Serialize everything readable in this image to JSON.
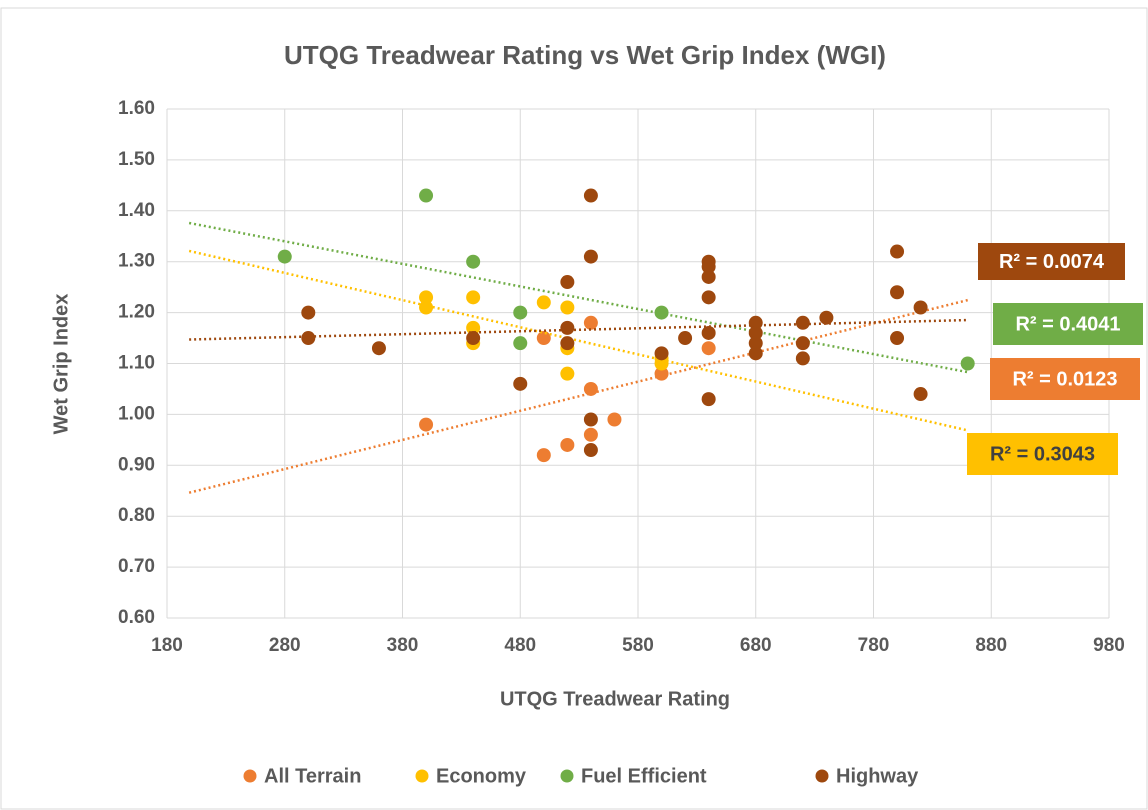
{
  "chart_data": {
    "type": "scatter",
    "title": "UTQG Treadwear Rating vs Wet Grip Index (WGI)",
    "x_label": "UTQG Treadwear Rating",
    "y_label": "Wet Grip Index",
    "xlim": [
      180,
      980
    ],
    "xticks": [
      180,
      280,
      380,
      480,
      580,
      680,
      780,
      880,
      980
    ],
    "ylim": [
      0.6,
      1.6
    ],
    "yticks": [
      {
        "value": 0.6,
        "label": "0.60"
      },
      {
        "value": 0.7,
        "label": "0.70"
      },
      {
        "value": 0.8,
        "label": "0.80"
      },
      {
        "value": 0.9,
        "label": "0.90"
      },
      {
        "value": 1.0,
        "label": "1.00"
      },
      {
        "value": 1.1,
        "label": "1.10"
      },
      {
        "value": 1.2,
        "label": "1.20"
      },
      {
        "value": 1.3,
        "label": "1.30"
      },
      {
        "value": 1.4,
        "label": "1.40"
      },
      {
        "value": 1.5,
        "label": "1.50"
      },
      {
        "value": 1.6,
        "label": "1.60"
      }
    ],
    "grid": true,
    "legend": "bottom",
    "series": [
      {
        "name": "All Terrain",
        "color": "#ed7d31",
        "trendline_label": "R² = 0.0123",
        "x": [
          400,
          500,
          500,
          520,
          540,
          540,
          540,
          560,
          600,
          640
        ],
        "values": [
          0.98,
          1.15,
          0.92,
          0.94,
          1.18,
          1.05,
          0.96,
          0.99,
          1.08,
          1.13
        ]
      },
      {
        "name": "Economy",
        "color": "#ffc000",
        "trendline_label": "R² = 0.3043",
        "x": [
          400,
          400,
          440,
          440,
          440,
          500,
          520,
          520,
          520,
          600,
          600
        ],
        "values": [
          1.23,
          1.21,
          1.23,
          1.17,
          1.14,
          1.22,
          1.21,
          1.13,
          1.08,
          1.11,
          1.1
        ]
      },
      {
        "name": "Fuel Efficient",
        "color": "#70ad47",
        "trendline_label": "R² = 0.4041",
        "x": [
          280,
          400,
          440,
          480,
          480,
          600,
          860
        ],
        "values": [
          1.31,
          1.43,
          1.3,
          1.2,
          1.14,
          1.2,
          1.1
        ]
      },
      {
        "name": "Highway",
        "color": "#9e480e",
        "trendline_label": "R² = 0.0074",
        "x": [
          300,
          300,
          360,
          440,
          480,
          520,
          520,
          520,
          540,
          540,
          540,
          540,
          600,
          620,
          640,
          640,
          640,
          640,
          640,
          640,
          680,
          680,
          680,
          680,
          720,
          720,
          720,
          740,
          800,
          800,
          800,
          820,
          820
        ],
        "values": [
          1.2,
          1.15,
          1.13,
          1.15,
          1.06,
          1.26,
          1.17,
          1.14,
          1.43,
          1.31,
          0.99,
          0.93,
          1.12,
          1.15,
          1.3,
          1.29,
          1.27,
          1.23,
          1.16,
          1.03,
          1.18,
          1.16,
          1.14,
          1.12,
          1.18,
          1.14,
          1.11,
          1.19,
          1.32,
          1.24,
          1.15,
          1.21,
          1.04
        ]
      }
    ]
  }
}
